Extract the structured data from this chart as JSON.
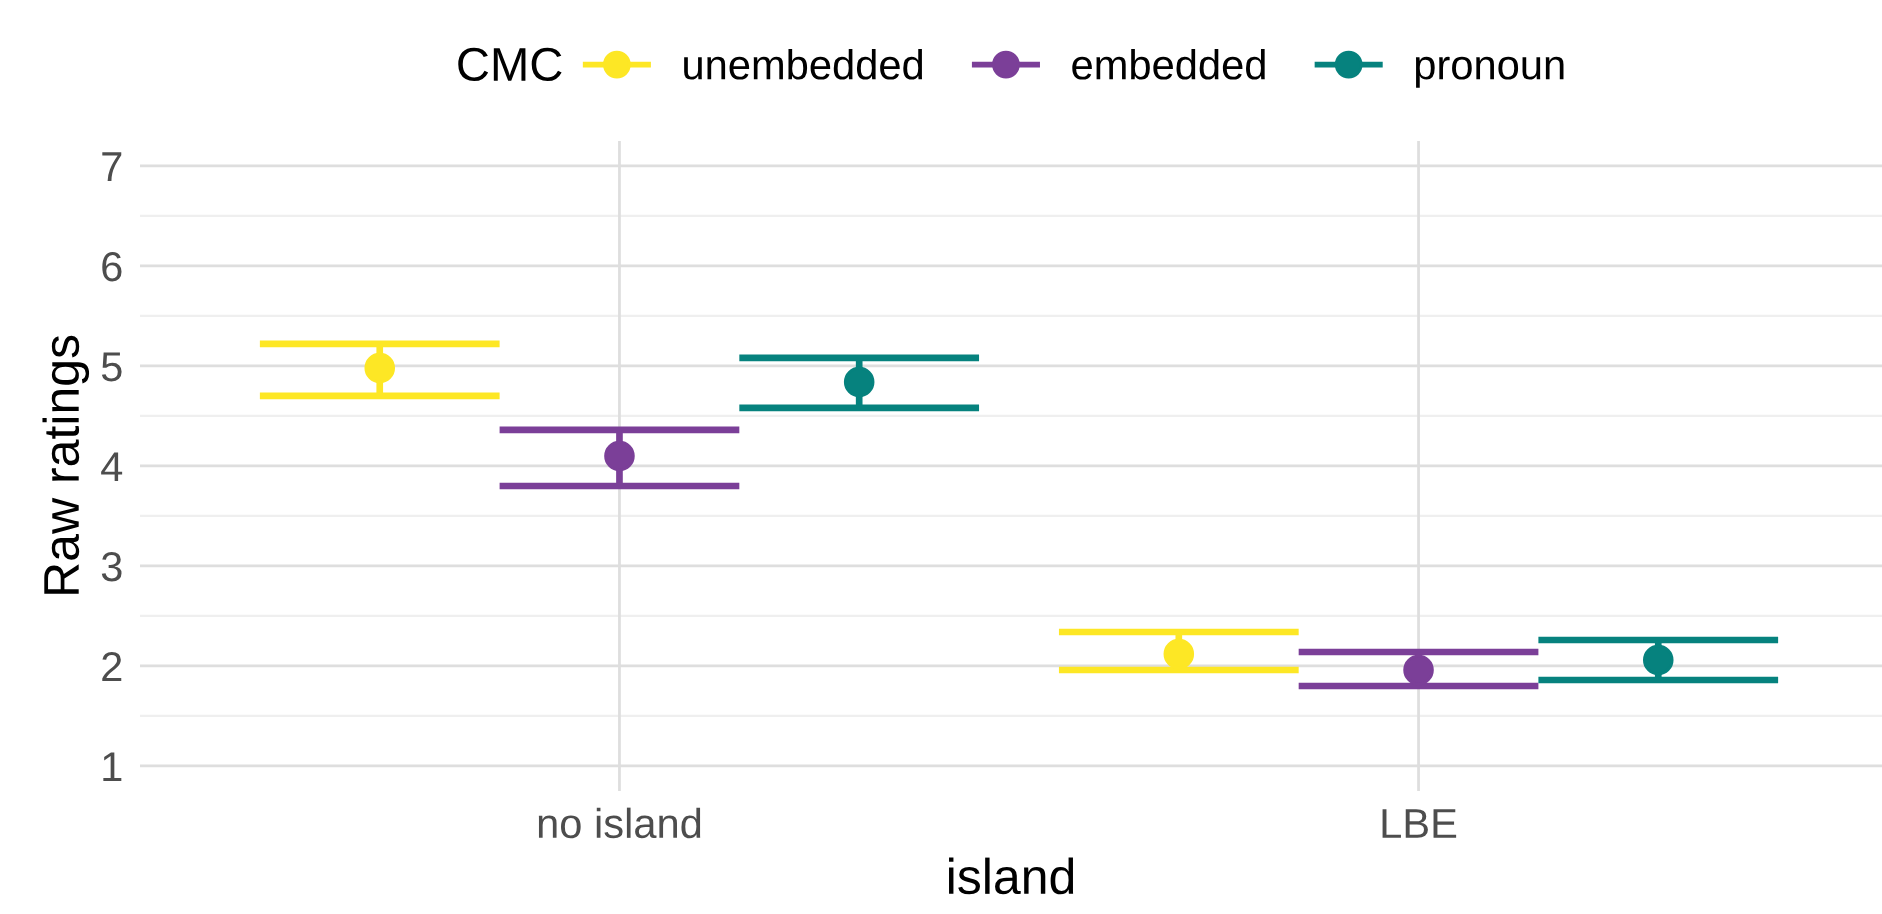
{
  "chart_data": {
    "type": "scatter",
    "xlabel": "island",
    "ylabel": "Raw ratings",
    "legend_title": "CMC",
    "categories": [
      "no island",
      "LBE"
    ],
    "series": [
      {
        "name": "unembedded",
        "color": "#fde725",
        "values": [
          4.98,
          2.12
        ],
        "errors": [
          [
            4.7,
            5.22
          ],
          [
            1.96,
            2.34
          ]
        ]
      },
      {
        "name": "embedded",
        "color": "#7b3f98",
        "values": [
          4.1,
          1.96
        ],
        "errors": [
          [
            3.8,
            4.36
          ],
          [
            1.8,
            2.14
          ]
        ]
      },
      {
        "name": "pronoun",
        "color": "#06827e",
        "values": [
          4.84,
          2.06
        ],
        "errors": [
          [
            4.58,
            5.08
          ],
          [
            1.86,
            2.26
          ]
        ]
      }
    ],
    "ylim": [
      0.75,
      7.25
    ],
    "yticks": [
      1,
      2,
      3,
      4,
      5,
      6,
      7
    ],
    "grid": true,
    "legend": "top",
    "marker": "circle"
  }
}
